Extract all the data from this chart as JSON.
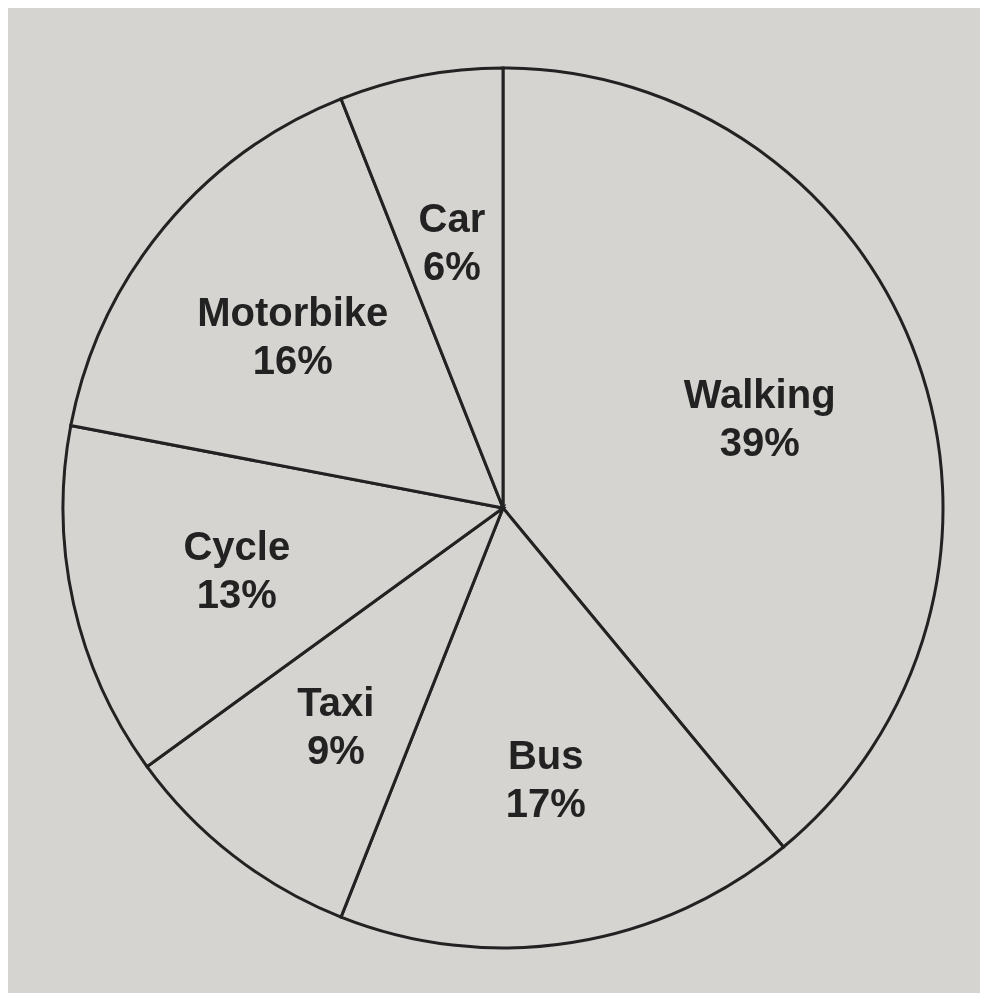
{
  "chart_data": {
    "type": "pie",
    "categories": [
      "Walking",
      "Bus",
      "Taxi",
      "Cycle",
      "Motorbike",
      "Car"
    ],
    "values": [
      39,
      17,
      9,
      13,
      16,
      6
    ],
    "value_labels": [
      "39%",
      "17%",
      "9%",
      "13%",
      "16%",
      "6%"
    ],
    "colors": [
      "#d6d4d0",
      "#d6d4d0",
      "#d6d4d0",
      "#d6d4d0",
      "#d6d4d0",
      "#d6d4d0"
    ],
    "legend": false
  }
}
